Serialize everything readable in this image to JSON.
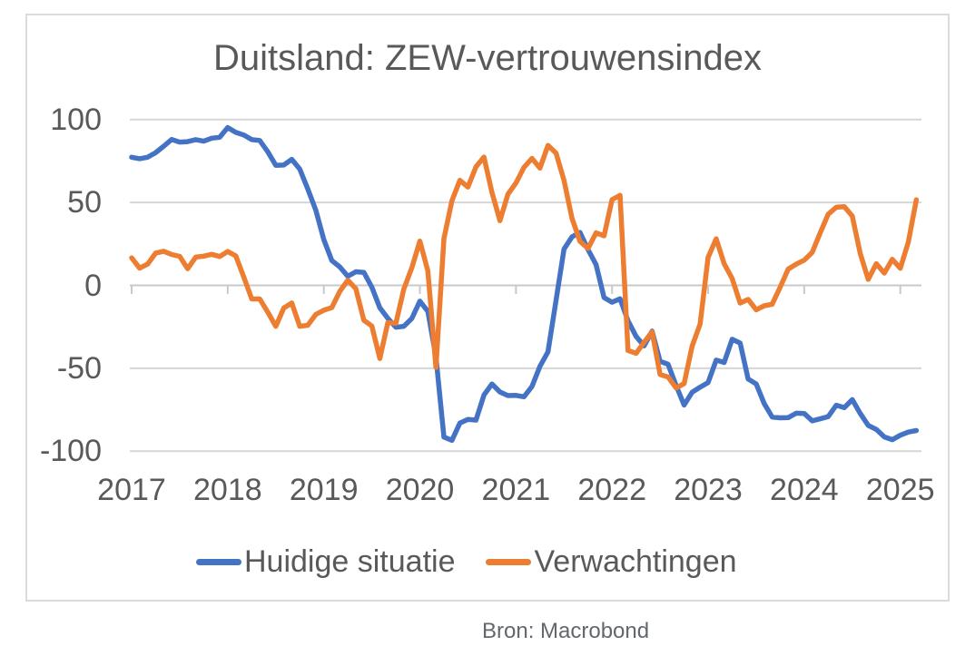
{
  "page": {
    "source_note": "Bron: Macrobond"
  },
  "chart_data": {
    "type": "line",
    "title": "Duitsland: ZEW-vertrouwensindex",
    "frequency": "monthly",
    "x_start": "2017-01",
    "x_end": "2025-03",
    "x_tick_labels": [
      "2017",
      "2018",
      "2019",
      "2020",
      "2021",
      "2022",
      "2023",
      "2024",
      "2025"
    ],
    "y_ticks": [
      100,
      50,
      0,
      -50,
      -100
    ],
    "ylim": [
      -100,
      100
    ],
    "grid": "horizontal",
    "legend_position": "bottom",
    "colors": {
      "grid": "#D6D6D6",
      "axis": "#C9C9C9",
      "text": "#595959"
    },
    "series": [
      {
        "name": "Huidige situatie",
        "color": "#4472C4",
        "values": [
          77.3,
          76.4,
          77.3,
          80.1,
          83.9,
          88.0,
          86.4,
          86.7,
          87.9,
          87.0,
          88.8,
          89.3,
          95.2,
          92.3,
          90.7,
          87.9,
          87.4,
          80.6,
          72.4,
          72.6,
          76.0,
          70.1,
          58.2,
          45.3,
          27.6,
          15.0,
          11.1,
          5.5,
          8.2,
          7.8,
          -1.1,
          -13.5,
          -19.9,
          -25.3,
          -24.7,
          -19.9,
          -9.5,
          -15.7,
          -43.1,
          -91.5,
          -93.5,
          -83.1,
          -80.9,
          -81.3,
          -66.2,
          -59.5,
          -64.3,
          -66.5,
          -66.4,
          -67.2,
          -61.0,
          -48.8,
          -40.1,
          -9.1,
          21.9,
          29.3,
          31.9,
          21.6,
          12.5,
          -7.4,
          -10.2,
          -8.1,
          -21.4,
          -30.8,
          -36.5,
          -27.6,
          -45.8,
          -47.6,
          -60.5,
          -72.2,
          -64.5,
          -61.4,
          -58.6,
          -45.1,
          -46.5,
          -32.5,
          -34.8,
          -56.5,
          -59.5,
          -71.3,
          -79.4,
          -79.9,
          -79.8,
          -77.1,
          -77.3,
          -81.7,
          -80.5,
          -79.2,
          -72.3,
          -73.8,
          -68.9,
          -77.3,
          -84.5,
          -86.9,
          -91.4,
          -93.1,
          -90.4,
          -88.5,
          -87.6
        ]
      },
      {
        "name": "Verwachtingen",
        "color": "#ED7D31",
        "values": [
          16.6,
          10.4,
          12.8,
          19.5,
          20.6,
          18.6,
          17.5,
          10.0,
          17.0,
          17.6,
          18.7,
          17.4,
          20.4,
          17.8,
          5.1,
          -8.2,
          -8.2,
          -16.1,
          -24.7,
          -13.7,
          -10.6,
          -24.7,
          -24.1,
          -17.5,
          -15.0,
          -13.4,
          -3.6,
          3.1,
          -2.1,
          -21.1,
          -24.5,
          -44.1,
          -22.5,
          -22.8,
          -2.1,
          10.7,
          26.7,
          8.7,
          -49.5,
          28.2,
          51.0,
          63.4,
          59.3,
          71.5,
          77.4,
          56.1,
          39.0,
          55.0,
          61.8,
          71.2,
          76.6,
          70.7,
          84.4,
          79.8,
          63.3,
          40.4,
          26.5,
          22.3,
          31.7,
          29.9,
          51.7,
          54.3,
          -39.3,
          -41.0,
          -34.3,
          -28.0,
          -53.8,
          -55.3,
          -61.9,
          -59.2,
          -36.7,
          -23.3,
          16.9,
          28.1,
          13.0,
          4.1,
          -10.7,
          -8.5,
          -14.7,
          -12.3,
          -11.4,
          -1.1,
          9.8,
          12.8,
          15.2,
          19.9,
          31.7,
          42.9,
          47.1,
          47.5,
          41.8,
          19.2,
          3.6,
          13.1,
          7.4,
          15.7,
          10.3,
          26.0,
          51.6
        ]
      }
    ]
  }
}
